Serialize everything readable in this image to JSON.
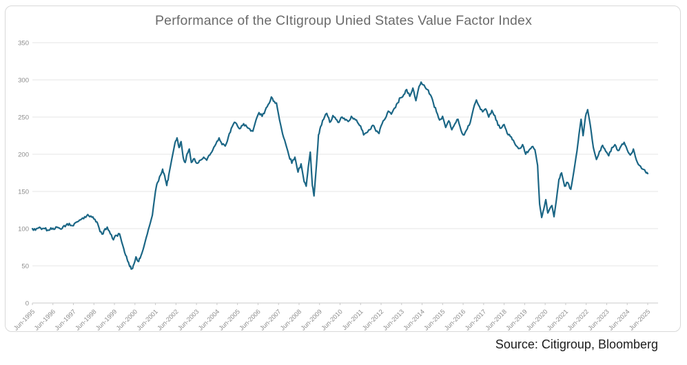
{
  "chart_data": {
    "type": "line",
    "title": "Performance of the CItigroup Unied States Value Factor Index",
    "source_label": "Source: Citigroup, Bloomberg",
    "xlabel": "",
    "ylabel": "",
    "legend": "none",
    "grid": "horizontal",
    "ylim": [
      0,
      350
    ],
    "xlim": [
      1995.45,
      2025.45
    ],
    "y_ticks": [
      0,
      50,
      100,
      150,
      200,
      250,
      300,
      350
    ],
    "x_ticks": [
      {
        "label": "Jun-1995",
        "t": 1995.45
      },
      {
        "label": "Jun-1996",
        "t": 1996.45
      },
      {
        "label": "Jun-1997",
        "t": 1997.45
      },
      {
        "label": "Jun-1998",
        "t": 1998.45
      },
      {
        "label": "Jun-1999",
        "t": 1999.45
      },
      {
        "label": "Jun-2000",
        "t": 2000.45
      },
      {
        "label": "Jun-2001",
        "t": 2001.45
      },
      {
        "label": "Jun-2002",
        "t": 2002.45
      },
      {
        "label": "Jun-2003",
        "t": 2003.45
      },
      {
        "label": "Jun-2004",
        "t": 2004.45
      },
      {
        "label": "Jun-2005",
        "t": 2005.45
      },
      {
        "label": "Jun-2006",
        "t": 2006.45
      },
      {
        "label": "Jun-2007",
        "t": 2007.45
      },
      {
        "label": "Jun-2008",
        "t": 2008.45
      },
      {
        "label": "Jun-2009",
        "t": 2009.45
      },
      {
        "label": "Jun-2010",
        "t": 2010.45
      },
      {
        "label": "Jun-2011",
        "t": 2011.45
      },
      {
        "label": "Jun-2012",
        "t": 2012.45
      },
      {
        "label": "Jun-2013",
        "t": 2013.45
      },
      {
        "label": "Jun-2014",
        "t": 2014.45
      },
      {
        "label": "Jun-2015",
        "t": 2015.45
      },
      {
        "label": "Jun-2016",
        "t": 2016.45
      },
      {
        "label": "Jun-2017",
        "t": 2017.45
      },
      {
        "label": "Jun-2018",
        "t": 2018.45
      },
      {
        "label": "Jun-2019",
        "t": 2019.45
      },
      {
        "label": "Jun-2020",
        "t": 2020.45
      },
      {
        "label": "Jun-2021",
        "t": 2021.45
      },
      {
        "label": "Jun-2022",
        "t": 2022.45
      },
      {
        "label": "Jun-2023",
        "t": 2023.45
      },
      {
        "label": "Jun-2024",
        "t": 2024.45
      },
      {
        "label": "Jun-2025",
        "t": 2025.45
      }
    ],
    "series": [
      {
        "name": "Citigroup United States Value Factor Index",
        "color": "#1b6685",
        "points": [
          [
            1995.45,
            100
          ],
          [
            1995.6,
            98
          ],
          [
            1995.75,
            101
          ],
          [
            1995.9,
            99
          ],
          [
            1996.05,
            100
          ],
          [
            1996.2,
            98
          ],
          [
            1996.35,
            101
          ],
          [
            1996.5,
            99
          ],
          [
            1996.65,
            102
          ],
          [
            1996.8,
            100
          ],
          [
            1996.95,
            103
          ],
          [
            1997.1,
            105
          ],
          [
            1997.25,
            107
          ],
          [
            1997.4,
            104
          ],
          [
            1997.55,
            108
          ],
          [
            1997.7,
            110
          ],
          [
            1997.85,
            113
          ],
          [
            1998.0,
            116
          ],
          [
            1998.15,
            119
          ],
          [
            1998.3,
            117
          ],
          [
            1998.45,
            113
          ],
          [
            1998.6,
            109
          ],
          [
            1998.75,
            96
          ],
          [
            1998.9,
            93
          ],
          [
            1999.0,
            100
          ],
          [
            1999.1,
            102
          ],
          [
            1999.25,
            93
          ],
          [
            1999.4,
            85
          ],
          [
            1999.55,
            91
          ],
          [
            1999.7,
            93
          ],
          [
            1999.85,
            78
          ],
          [
            2000.0,
            64
          ],
          [
            2000.1,
            56
          ],
          [
            2000.2,
            49
          ],
          [
            2000.3,
            46
          ],
          [
            2000.4,
            52
          ],
          [
            2000.5,
            62
          ],
          [
            2000.6,
            56
          ],
          [
            2000.7,
            60
          ],
          [
            2000.85,
            72
          ],
          [
            2001.0,
            88
          ],
          [
            2001.15,
            103
          ],
          [
            2001.3,
            118
          ],
          [
            2001.45,
            150
          ],
          [
            2001.55,
            162
          ],
          [
            2001.7,
            172
          ],
          [
            2001.8,
            180
          ],
          [
            2001.9,
            171
          ],
          [
            2002.0,
            158
          ],
          [
            2002.1,
            172
          ],
          [
            2002.25,
            194
          ],
          [
            2002.4,
            215
          ],
          [
            2002.5,
            222
          ],
          [
            2002.6,
            209
          ],
          [
            2002.7,
            217
          ],
          [
            2002.8,
            196
          ],
          [
            2002.9,
            189
          ],
          [
            2003.0,
            201
          ],
          [
            2003.1,
            207
          ],
          [
            2003.2,
            189
          ],
          [
            2003.35,
            194
          ],
          [
            2003.5,
            188
          ],
          [
            2003.65,
            192
          ],
          [
            2003.8,
            196
          ],
          [
            2003.95,
            192
          ],
          [
            2004.1,
            199
          ],
          [
            2004.25,
            206
          ],
          [
            2004.4,
            214
          ],
          [
            2004.55,
            222
          ],
          [
            2004.7,
            213
          ],
          [
            2004.85,
            211
          ],
          [
            2005.0,
            223
          ],
          [
            2005.15,
            235
          ],
          [
            2005.3,
            243
          ],
          [
            2005.45,
            238
          ],
          [
            2005.6,
            235
          ],
          [
            2005.75,
            241
          ],
          [
            2005.9,
            237
          ],
          [
            2006.05,
            234
          ],
          [
            2006.2,
            231
          ],
          [
            2006.35,
            246
          ],
          [
            2006.5,
            256
          ],
          [
            2006.65,
            251
          ],
          [
            2006.8,
            259
          ],
          [
            2006.95,
            267
          ],
          [
            2007.1,
            277
          ],
          [
            2007.25,
            271
          ],
          [
            2007.35,
            269
          ],
          [
            2007.5,
            246
          ],
          [
            2007.65,
            227
          ],
          [
            2007.8,
            214
          ],
          [
            2007.95,
            199
          ],
          [
            2008.1,
            188
          ],
          [
            2008.25,
            196
          ],
          [
            2008.4,
            176
          ],
          [
            2008.55,
            187
          ],
          [
            2008.7,
            163
          ],
          [
            2008.8,
            157
          ],
          [
            2008.9,
            183
          ],
          [
            2009.0,
            203
          ],
          [
            2009.1,
            158
          ],
          [
            2009.18,
            144
          ],
          [
            2009.3,
            186
          ],
          [
            2009.4,
            226
          ],
          [
            2009.5,
            237
          ],
          [
            2009.65,
            247
          ],
          [
            2009.8,
            255
          ],
          [
            2009.95,
            243
          ],
          [
            2010.1,
            252
          ],
          [
            2010.25,
            247
          ],
          [
            2010.4,
            243
          ],
          [
            2010.55,
            250
          ],
          [
            2010.7,
            246
          ],
          [
            2010.85,
            244
          ],
          [
            2011.0,
            251
          ],
          [
            2011.15,
            248
          ],
          [
            2011.3,
            243
          ],
          [
            2011.45,
            238
          ],
          [
            2011.6,
            226
          ],
          [
            2011.75,
            229
          ],
          [
            2011.9,
            233
          ],
          [
            2012.05,
            239
          ],
          [
            2012.2,
            231
          ],
          [
            2012.35,
            228
          ],
          [
            2012.5,
            241
          ],
          [
            2012.65,
            248
          ],
          [
            2012.8,
            258
          ],
          [
            2012.95,
            254
          ],
          [
            2013.1,
            262
          ],
          [
            2013.25,
            269
          ],
          [
            2013.4,
            276
          ],
          [
            2013.55,
            280
          ],
          [
            2013.7,
            287
          ],
          [
            2013.85,
            278
          ],
          [
            2014.0,
            289
          ],
          [
            2014.15,
            272
          ],
          [
            2014.3,
            291
          ],
          [
            2014.4,
            297
          ],
          [
            2014.55,
            293
          ],
          [
            2014.7,
            287
          ],
          [
            2014.85,
            280
          ],
          [
            2015.0,
            269
          ],
          [
            2015.15,
            257
          ],
          [
            2015.3,
            246
          ],
          [
            2015.45,
            251
          ],
          [
            2015.6,
            236
          ],
          [
            2015.75,
            245
          ],
          [
            2015.9,
            233
          ],
          [
            2016.05,
            241
          ],
          [
            2016.2,
            247
          ],
          [
            2016.35,
            232
          ],
          [
            2016.5,
            226
          ],
          [
            2016.65,
            234
          ],
          [
            2016.8,
            243
          ],
          [
            2016.95,
            261
          ],
          [
            2017.1,
            273
          ],
          [
            2017.25,
            264
          ],
          [
            2017.4,
            257
          ],
          [
            2017.55,
            261
          ],
          [
            2017.7,
            250
          ],
          [
            2017.85,
            259
          ],
          [
            2018.0,
            252
          ],
          [
            2018.15,
            239
          ],
          [
            2018.3,
            235
          ],
          [
            2018.45,
            240
          ],
          [
            2018.6,
            228
          ],
          [
            2018.75,
            224
          ],
          [
            2018.9,
            219
          ],
          [
            2019.05,
            211
          ],
          [
            2019.2,
            208
          ],
          [
            2019.35,
            213
          ],
          [
            2019.5,
            200
          ],
          [
            2019.65,
            205
          ],
          [
            2019.8,
            210
          ],
          [
            2019.95,
            206
          ],
          [
            2020.08,
            185
          ],
          [
            2020.18,
            133
          ],
          [
            2020.28,
            115
          ],
          [
            2020.38,
            126
          ],
          [
            2020.48,
            139
          ],
          [
            2020.58,
            121
          ],
          [
            2020.68,
            127
          ],
          [
            2020.78,
            131
          ],
          [
            2020.88,
            116
          ],
          [
            2021.0,
            139
          ],
          [
            2021.12,
            166
          ],
          [
            2021.25,
            175
          ],
          [
            2021.4,
            157
          ],
          [
            2021.55,
            162
          ],
          [
            2021.7,
            153
          ],
          [
            2021.85,
            177
          ],
          [
            2022.0,
            204
          ],
          [
            2022.1,
            227
          ],
          [
            2022.2,
            247
          ],
          [
            2022.3,
            225
          ],
          [
            2022.42,
            251
          ],
          [
            2022.52,
            260
          ],
          [
            2022.65,
            239
          ],
          [
            2022.8,
            209
          ],
          [
            2022.95,
            193
          ],
          [
            2023.1,
            204
          ],
          [
            2023.25,
            212
          ],
          [
            2023.4,
            204
          ],
          [
            2023.55,
            198
          ],
          [
            2023.7,
            209
          ],
          [
            2023.85,
            213
          ],
          [
            2024.0,
            205
          ],
          [
            2024.15,
            211
          ],
          [
            2024.3,
            216
          ],
          [
            2024.45,
            206
          ],
          [
            2024.6,
            199
          ],
          [
            2024.75,
            207
          ],
          [
            2024.9,
            192
          ],
          [
            2025.05,
            185
          ],
          [
            2025.2,
            180
          ],
          [
            2025.35,
            176
          ],
          [
            2025.45,
            174
          ]
        ]
      }
    ],
    "colors": {
      "line": "#1b6685",
      "gridline": "#e4e4e4",
      "axis_line": "#c9c9c9",
      "axis_text": "#8c8c8c",
      "title_text": "#6b6b6b",
      "source_text": "#1c1c1c",
      "frame_border": "#d8d8d8"
    }
  }
}
